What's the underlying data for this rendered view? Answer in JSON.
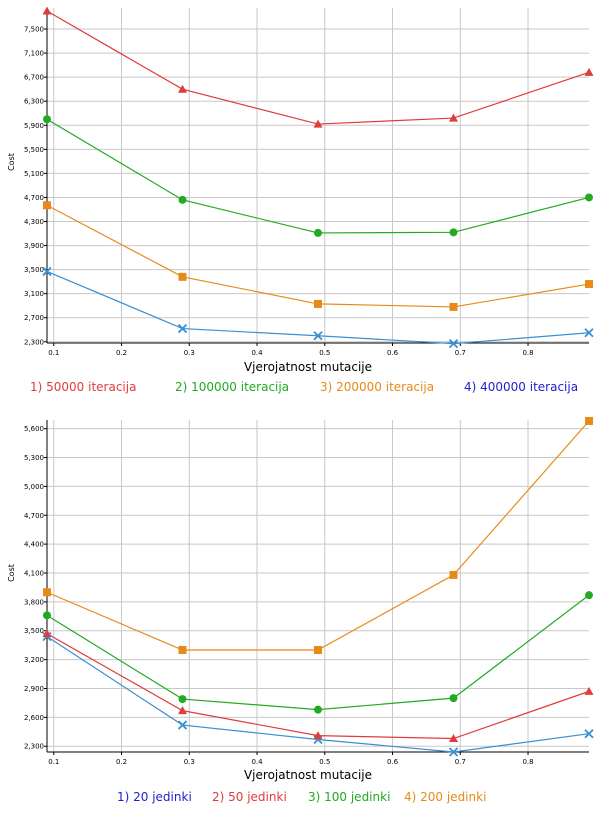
{
  "chart_data": [
    {
      "type": "line",
      "title": "",
      "xlabel": "Vjerojatnost mutacije",
      "ylabel": "Cost",
      "xlim": [
        0.09,
        0.89
      ],
      "ylim": [
        2280,
        7850
      ],
      "xticks": [
        0.1,
        0.2,
        0.3,
        0.4,
        0.5,
        0.6,
        0.7,
        0.8
      ],
      "xtick_labels": [
        "0.1",
        "0.2",
        "0.3",
        "0.4",
        "0.5",
        "0.6",
        "0.7",
        "0.8"
      ],
      "yticks": [
        2300,
        2700,
        3100,
        3500,
        3900,
        4300,
        4700,
        5100,
        5500,
        5900,
        6300,
        6700,
        7100,
        7500
      ],
      "ytick_labels": [
        "2,300",
        "2,700",
        "3,100",
        "3,500",
        "3,900",
        "4,300",
        "4,700",
        "5,100",
        "5,500",
        "5,900",
        "6,300",
        "6,700",
        "7,100",
        "7,500"
      ],
      "grid": true,
      "legend_position": "bottom",
      "x": [
        0.09,
        0.29,
        0.49,
        0.69,
        0.89
      ],
      "series": [
        {
          "name": "1) 50000 iteracija",
          "color": "#e03c3c",
          "legend_color": "#e03c3c",
          "marker": "triangle",
          "values": [
            7800,
            6500,
            5920,
            6020,
            6780
          ]
        },
        {
          "name": "2) 100000 iteracija",
          "color": "#22aa22",
          "legend_color": "#22aa22",
          "marker": "circle",
          "values": [
            6000,
            4660,
            4110,
            4120,
            4700
          ]
        },
        {
          "name": "3) 200000 iteracija",
          "color": "#e88a1a",
          "legend_color": "#e88a1a",
          "marker": "square",
          "values": [
            4570,
            3380,
            2930,
            2880,
            3260
          ]
        },
        {
          "name": "4) 400000 iteracija",
          "color": "#3a8fd0",
          "legend_color": "#2222cc",
          "marker": "x",
          "values": [
            3470,
            2520,
            2400,
            2270,
            2450
          ]
        }
      ]
    },
    {
      "type": "line",
      "title": "",
      "xlabel": "Vjerojatnost mutacije",
      "ylabel": "Cost",
      "xlim": [
        0.09,
        0.89
      ],
      "ylim": [
        2240,
        5690
      ],
      "xticks": [
        0.1,
        0.2,
        0.3,
        0.4,
        0.5,
        0.6,
        0.7,
        0.8
      ],
      "xtick_labels": [
        "0.1",
        "0.2",
        "0.3",
        "0.4",
        "0.5",
        "0.6",
        "0.7",
        "0.8"
      ],
      "yticks": [
        2300,
        2600,
        2900,
        3200,
        3500,
        3800,
        4100,
        4400,
        4700,
        5000,
        5300,
        5600
      ],
      "ytick_labels": [
        "2,300",
        "2,600",
        "2,900",
        "3,200",
        "3,500",
        "3,800",
        "4,100",
        "4,400",
        "4,700",
        "5,000",
        "5,300",
        "5,600"
      ],
      "grid": true,
      "legend_position": "bottom",
      "x": [
        0.09,
        0.29,
        0.49,
        0.69,
        0.89
      ],
      "series": [
        {
          "name": "1) 20 jedinki",
          "color": "#3a8fd0",
          "legend_color": "#2222cc",
          "marker": "x",
          "values": [
            3440,
            2520,
            2370,
            2240,
            2430
          ]
        },
        {
          "name": "2) 50 jedinki",
          "color": "#e03c3c",
          "legend_color": "#e03c3c",
          "marker": "triangle",
          "values": [
            3470,
            2670,
            2410,
            2380,
            2870
          ]
        },
        {
          "name": "3) 100 jedinki",
          "color": "#22aa22",
          "legend_color": "#22aa22",
          "marker": "circle",
          "values": [
            3660,
            2790,
            2680,
            2800,
            3870
          ]
        },
        {
          "name": "4) 200 jedinki",
          "color": "#e88a1a",
          "legend_color": "#e88a1a",
          "marker": "square",
          "values": [
            3900,
            3300,
            3300,
            4080,
            5680
          ]
        }
      ]
    }
  ]
}
